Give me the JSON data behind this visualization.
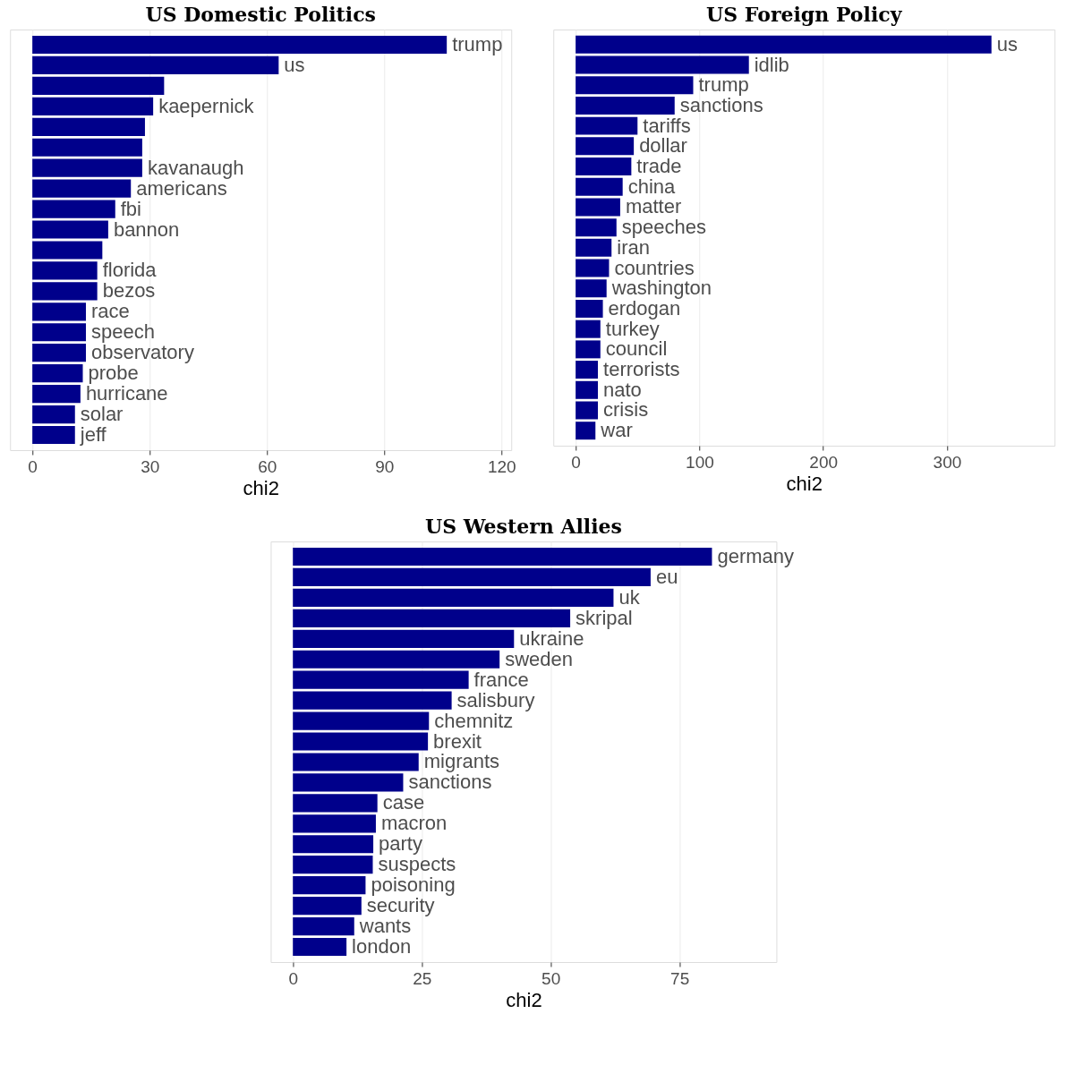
{
  "chart_data": [
    {
      "type": "bar",
      "orientation": "horizontal",
      "title": "US Domestic Politics",
      "xlabel": "chi2",
      "color": "#00008b",
      "grid": "x",
      "tick_labels": "x",
      "categories": [
        "trump",
        "us",
        null,
        "kaepernick",
        null,
        null,
        "kavanaugh",
        "americans",
        "fbi",
        "bannon",
        null,
        "florida",
        "bezos",
        "race",
        "speech",
        "observatory",
        "probe",
        "hurricane",
        "solar",
        "jeff"
      ],
      "values": [
        106,
        63,
        33.7,
        30.9,
        28.8,
        28.1,
        28.1,
        25.2,
        21.2,
        19.4,
        17.9,
        16.6,
        16.6,
        13.7,
        13.7,
        13.7,
        12.9,
        12.3,
        10.9,
        10.9
      ],
      "xlim": [
        -5.7,
        122.5
      ],
      "xticks": [
        0,
        30,
        60,
        90,
        120
      ]
    },
    {
      "type": "bar",
      "orientation": "horizontal",
      "title": "US Foreign Policy",
      "xlabel": "chi2",
      "color": "#00008b",
      "grid": "x",
      "tick_labels": "x",
      "categories": [
        "us",
        "idlib",
        "trump",
        "sanctions",
        "tariffs",
        "dollar",
        "trade",
        "china",
        "matter",
        "speeches",
        "iran",
        "countries",
        "washington",
        "erdogan",
        "turkey",
        "council",
        "terrorists",
        "nato",
        "crisis",
        "war"
      ],
      "values": [
        336,
        140,
        95,
        80,
        50,
        47,
        45,
        38,
        36,
        33,
        29,
        27,
        25,
        22,
        20,
        20,
        18,
        18,
        18,
        16
      ],
      "xlim": [
        -18,
        387
      ],
      "xticks": [
        0,
        100,
        200,
        300
      ]
    },
    {
      "type": "bar",
      "orientation": "horizontal",
      "title": "US Western Allies",
      "xlabel": "chi2",
      "color": "#00008b",
      "grid": "x",
      "tick_labels": "x",
      "categories": [
        "germany",
        "eu",
        "uk",
        "skripal",
        "ukraine",
        "sweden",
        "france",
        "salisbury",
        "chemnitz",
        "brexit",
        "migrants",
        "sanctions",
        "case",
        "macron",
        "party",
        "suspects",
        "poisoning",
        "security",
        "wants",
        "london"
      ],
      "values": [
        81.3,
        69.4,
        62.2,
        53.8,
        42.9,
        40.1,
        34.1,
        30.8,
        26.4,
        26.2,
        24.4,
        21.4,
        16.4,
        16.1,
        15.6,
        15.5,
        14.1,
        13.3,
        11.9,
        10.4
      ],
      "xlim": [
        -4.3,
        93.8
      ],
      "xticks": [
        0,
        25,
        50,
        75
      ]
    }
  ]
}
